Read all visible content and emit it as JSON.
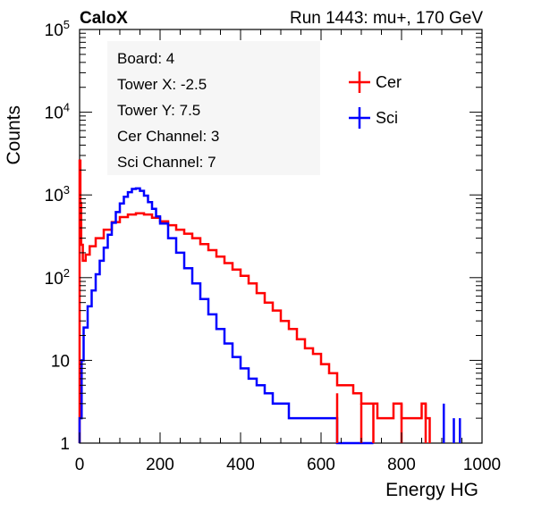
{
  "header": {
    "brand": "CaloX",
    "run_label": "Run 1443: mu+, 170 GeV"
  },
  "info_box": {
    "lines": [
      "Board: 4",
      "Tower X: -2.5",
      "Tower Y: 7.5",
      "Cer Channel: 3",
      "Sci Channel: 7"
    ]
  },
  "chart_data": {
    "type": "line",
    "title": "",
    "xlabel": "Energy HG",
    "ylabel": "Counts",
    "xlim": [
      0,
      1000
    ],
    "ylim": [
      1,
      100000
    ],
    "yscale": "log",
    "grid": false,
    "legend": "top-right",
    "x_ticks": [
      "0",
      "200",
      "400",
      "600",
      "800",
      "1000"
    ],
    "y_ticks": [
      {
        "mantissa": "1",
        "exp": ""
      },
      {
        "mantissa": "10",
        "exp": ""
      },
      {
        "mantissa": "10",
        "exp": "2"
      },
      {
        "mantissa": "10",
        "exp": "3"
      },
      {
        "mantissa": "10",
        "exp": "4"
      },
      {
        "mantissa": "10",
        "exp": "5"
      }
    ],
    "series": [
      {
        "name": "Cer",
        "color": "#ff0000",
        "x": [
          0,
          2,
          4,
          8,
          15,
          25,
          40,
          60,
          80,
          100,
          120,
          140,
          160,
          180,
          200,
          220,
          240,
          260,
          280,
          300,
          320,
          340,
          360,
          380,
          400,
          420,
          440,
          460,
          480,
          500,
          520,
          540,
          560,
          580,
          600,
          620,
          640,
          660,
          680,
          700,
          720,
          740,
          760,
          780,
          800,
          820,
          850,
          860
        ],
        "y": [
          2600,
          800,
          250,
          160,
          190,
          240,
          300,
          380,
          470,
          540,
          580,
          600,
          580,
          530,
          480,
          430,
          380,
          340,
          300,
          255,
          215,
          180,
          150,
          125,
          105,
          85,
          65,
          50,
          40,
          30,
          24,
          18,
          14,
          12,
          9,
          7,
          5,
          5,
          4,
          3,
          3,
          2,
          2,
          3,
          2,
          2,
          3,
          2
        ]
      },
      {
        "name": "Sci",
        "color": "#0000ff",
        "x": [
          0,
          5,
          10,
          20,
          30,
          40,
          50,
          60,
          70,
          80,
          90,
          100,
          110,
          120,
          130,
          140,
          150,
          160,
          170,
          180,
          190,
          200,
          220,
          240,
          260,
          280,
          300,
          320,
          340,
          360,
          380,
          400,
          420,
          440,
          460,
          480,
          500,
          520,
          540,
          560,
          580,
          600,
          640,
          680,
          720
        ],
        "y": [
          2,
          10,
          25,
          45,
          70,
          110,
          160,
          230,
          330,
          460,
          620,
          790,
          950,
          1080,
          1180,
          1200,
          1120,
          980,
          820,
          680,
          550,
          450,
          300,
          200,
          130,
          85,
          55,
          36,
          24,
          16,
          11,
          8,
          6,
          5,
          4,
          3,
          3,
          2,
          2,
          2,
          2,
          2,
          1,
          1,
          1
        ]
      }
    ],
    "sparse_spikes": [
      {
        "series": "Sci",
        "x": [
          905,
          930,
          945
        ],
        "y": [
          3,
          2,
          2
        ]
      },
      {
        "series": "Cer",
        "x": [
          640,
          700,
          730,
          800,
          860
        ],
        "y": [
          4,
          3,
          3,
          3,
          3
        ]
      }
    ]
  }
}
